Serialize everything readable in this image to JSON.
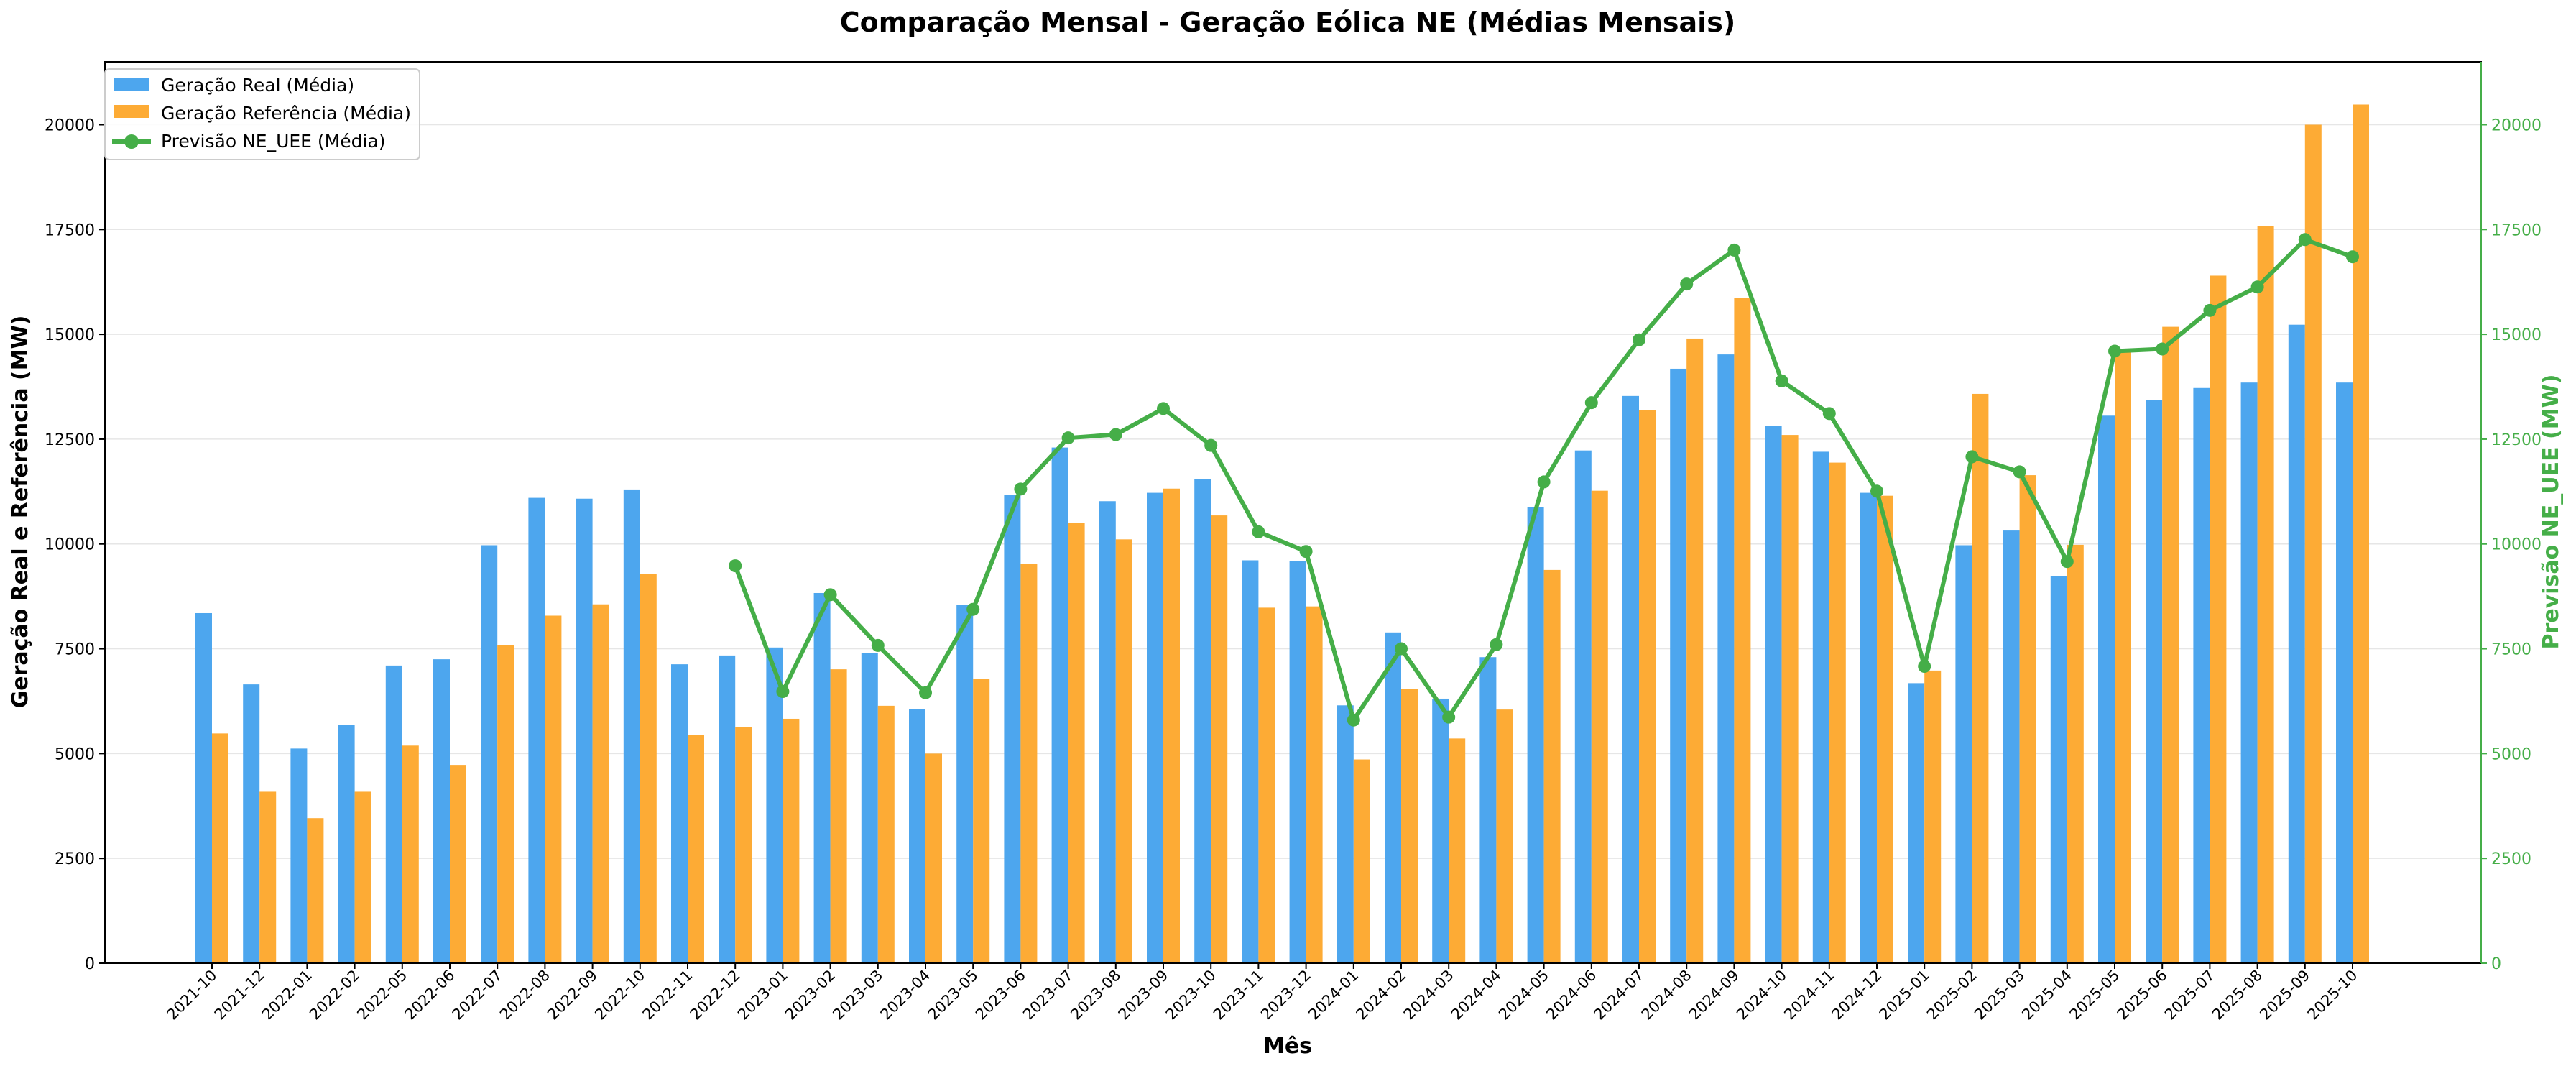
{
  "chart_data": {
    "type": "bar",
    "title": "Comparação Mensal - Geração Eólica NE (Médias Mensais)",
    "xlabel": "Mês",
    "ylabel_left": "Geração Real e Referência (MW)",
    "ylabel_right": "Previsão NE_UEE (MW)",
    "ylim": [
      0,
      21500
    ],
    "y_ticks": [
      0,
      2500,
      5000,
      7500,
      10000,
      12500,
      15000,
      17500,
      20000
    ],
    "y_tick_labels": [
      "0",
      "2500",
      "5000",
      "7500",
      "10000",
      "12500",
      "15000",
      "17500",
      "20000"
    ],
    "grid": "horizontal",
    "legend_position": "top-left",
    "colors": {
      "real": "#4da6ee",
      "referencia": "#fdab35",
      "previsao": "#45ae48",
      "axis": "#000000",
      "grid": "#e6e6e6"
    },
    "categories": [
      "2021-10",
      "2021-12",
      "2022-01",
      "2022-02",
      "2022-05",
      "2022-06",
      "2022-07",
      "2022-08",
      "2022-09",
      "2022-10",
      "2022-11",
      "2022-12",
      "2023-01",
      "2023-02",
      "2023-03",
      "2023-04",
      "2023-05",
      "2023-06",
      "2023-07",
      "2023-08",
      "2023-09",
      "2023-10",
      "2023-11",
      "2023-12",
      "2024-01",
      "2024-02",
      "2024-03",
      "2024-04",
      "2024-05",
      "2024-06",
      "2024-07",
      "2024-08",
      "2024-09",
      "2024-10",
      "2024-11",
      "2024-12",
      "2025-01",
      "2025-02",
      "2025-03",
      "2025-04",
      "2025-05",
      "2025-06",
      "2025-07",
      "2025-08",
      "2025-09",
      "2025-10"
    ],
    "series": [
      {
        "name": "Geração Real (Média)",
        "kind": "bar",
        "values": [
          8350,
          6650,
          5120,
          5680,
          7100,
          7250,
          9970,
          11100,
          11080,
          11300,
          7130,
          7340,
          7530,
          8830,
          7400,
          6060,
          8550,
          11170,
          12300,
          11020,
          11220,
          11540,
          9610,
          9590,
          6150,
          7890,
          6310,
          7300,
          10880,
          12230,
          13530,
          14180,
          14520,
          12810,
          12200,
          11220,
          6680,
          9970,
          10320,
          9230,
          13060,
          13430,
          13720,
          13850,
          15230,
          13850
        ]
      },
      {
        "name": "Geração Referência (Média)",
        "kind": "bar",
        "values": [
          5480,
          4090,
          3460,
          4090,
          5190,
          4730,
          7580,
          8290,
          8560,
          9290,
          5440,
          5630,
          5830,
          7010,
          6140,
          5000,
          6780,
          9530,
          10510,
          10110,
          11320,
          10680,
          8480,
          8510,
          4860,
          6540,
          5360,
          6050,
          9380,
          11270,
          13200,
          14900,
          15860,
          12600,
          11940,
          11150,
          6980,
          13580,
          11640,
          9980,
          14650,
          15180,
          16400,
          17580,
          20000,
          20480
        ]
      },
      {
        "name": "Previsão NE_UEE (Média)",
        "kind": "line",
        "values": [
          null,
          null,
          null,
          null,
          null,
          null,
          null,
          null,
          null,
          null,
          null,
          9480,
          6480,
          8790,
          7580,
          6450,
          8440,
          11310,
          12530,
          12610,
          13230,
          12350,
          10290,
          9820,
          5800,
          7500,
          5870,
          7600,
          11480,
          13370,
          14870,
          16200,
          17010,
          13890,
          13110,
          11260,
          7080,
          12080,
          11720,
          9580,
          14600,
          14650,
          15570,
          16130,
          17260,
          16850
        ]
      }
    ]
  }
}
